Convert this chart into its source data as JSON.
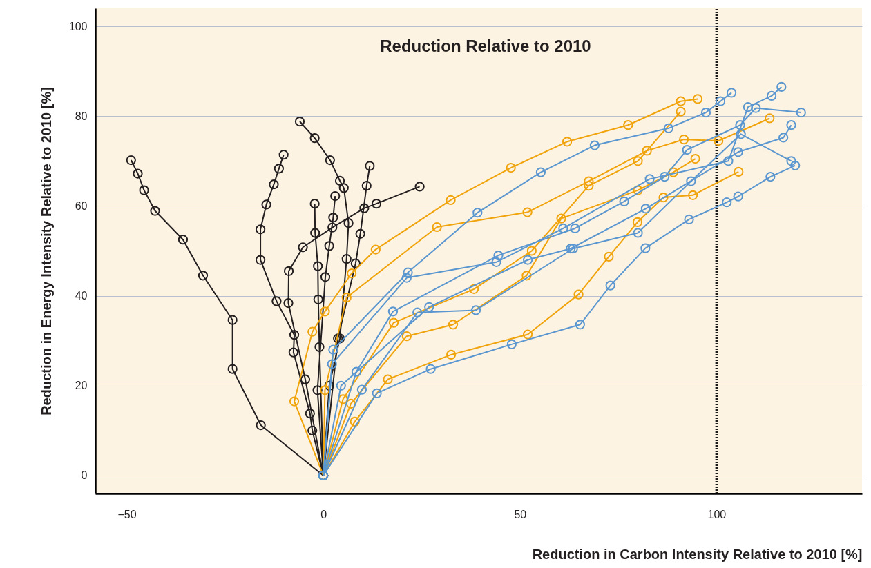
{
  "chart_data": {
    "type": "line",
    "title": "Reduction Relative to 2010",
    "xlabel": "Reduction in Carbon Intensity Relative to 2010 [%]",
    "ylabel": "Reduction in Energy Intensity Relative to 2010 [%]",
    "xlim": [
      -58,
      137
    ],
    "ylim": [
      -4,
      104
    ],
    "xticks": [
      -50,
      0,
      50,
      100
    ],
    "yticks": [
      0,
      20,
      40,
      60,
      80,
      100
    ],
    "grid": "y",
    "marker": "circle",
    "ref_lines": [
      {
        "axis": "x",
        "value": 100,
        "color": "#1a1a1a",
        "line_style": "dotted"
      }
    ],
    "series": [
      {
        "color": "#231f20",
        "x": [
          0,
          -15.9,
          -23.1,
          -23.1,
          -30.6,
          -35.7,
          -42.8,
          -45.6,
          -47.2,
          -48.9
        ],
        "values": [
          0,
          11.2,
          23.7,
          34.6,
          44.5,
          52.5,
          58.9,
          63.5,
          67.2,
          70.2
        ]
      },
      {
        "color": "#231f20",
        "x": [
          0,
          -2.8,
          -3.4,
          -7.6,
          -7.4,
          -11.9,
          -16,
          -16,
          -14.5,
          -12.6,
          -11.3,
          -10.1
        ],
        "values": [
          0,
          10,
          13.8,
          27.4,
          31.3,
          38.8,
          48,
          54.8,
          60.3,
          64.8,
          68.3,
          71.4
        ]
      },
      {
        "color": "#231f20",
        "x": [
          0,
          1.5,
          4.2,
          5.9,
          6.4,
          5.2,
          4.2,
          1.7,
          -2.2,
          -6
        ],
        "values": [
          0,
          20,
          30.5,
          48.2,
          56.2,
          64,
          65.6,
          70.2,
          75.1,
          78.8
        ]
      },
      {
        "color": "#231f20",
        "x": [
          0,
          -4.6,
          -8.9,
          -8.8,
          -5.2,
          2.3,
          10.4,
          13.5,
          24.5
        ],
        "values": [
          0,
          21.4,
          38.4,
          45.5,
          50.8,
          55.2,
          59.5,
          60.5,
          64.3
        ]
      },
      {
        "color": "#231f20",
        "x": [
          0,
          3.7,
          8.2,
          9.4,
          11,
          11.8
        ],
        "values": [
          0,
          30.5,
          47.2,
          53.8,
          64.5,
          68.9
        ]
      },
      {
        "color": "#231f20",
        "x": [
          0,
          -1,
          -1.3,
          -1.4,
          -2.1,
          -2.2
        ],
        "values": [
          0,
          28.6,
          39.2,
          46.6,
          54,
          60.5
        ]
      },
      {
        "color": "#231f20",
        "x": [
          0,
          -1.5,
          0.5,
          1.5,
          2.5,
          3
        ],
        "values": [
          0,
          19,
          44.2,
          51.1,
          57.4,
          62.2
        ]
      },
      {
        "color": "#f0a30a",
        "x": [
          0,
          -7.4,
          -2.8,
          0.4,
          7.2,
          13.3,
          32.4,
          47.7,
          62,
          77.5,
          90.9,
          95.2
        ],
        "values": [
          0,
          16.5,
          32,
          36.5,
          45,
          50.3,
          61.3,
          68.5,
          74.3,
          78,
          83.3,
          83.8
        ]
      },
      {
        "color": "#f0a30a",
        "x": [
          0,
          0.4,
          5.9,
          28.9,
          51.9,
          67.5,
          82.3,
          91.7,
          100.5,
          113.5
        ],
        "values": [
          0,
          19,
          39.6,
          55.3,
          58.6,
          65.5,
          72.3,
          74.8,
          74.5,
          79.5
        ]
      },
      {
        "color": "#f0a30a",
        "x": [
          0,
          5,
          17.9,
          38.3,
          53,
          67.5,
          80,
          90.9
        ],
        "values": [
          0,
          17,
          34,
          41.5,
          50,
          64.5,
          70,
          81
        ]
      },
      {
        "color": "#f0a30a",
        "x": [
          0,
          7,
          21.2,
          33,
          51.7,
          60.5,
          80,
          89,
          94.6
        ],
        "values": [
          0,
          16,
          31,
          33.6,
          44.5,
          57.2,
          63.5,
          67.5,
          70.5
        ]
      },
      {
        "color": "#f0a30a",
        "x": [
          0,
          8,
          16.4,
          32.5,
          52,
          64.9,
          72.6,
          79.9,
          86.5,
          94,
          105.6
        ],
        "values": [
          0,
          12,
          21.4,
          26.9,
          31.4,
          40.3,
          48.7,
          56.4,
          61.9,
          62.4,
          67.6
        ]
      },
      {
        "color": "#5a96cf",
        "x": [
          0,
          2.5,
          21.5,
          39.2,
          55.3,
          69,
          87.8,
          97.3,
          101,
          103.8
        ],
        "values": [
          0,
          28,
          45.2,
          58.5,
          67.5,
          73.5,
          77.3,
          80.8,
          83.3,
          85.2
        ]
      },
      {
        "color": "#5a96cf",
        "x": [
          0,
          2.2,
          21.2,
          44,
          61,
          83,
          103,
          108,
          114,
          116.5
        ],
        "values": [
          0,
          24.8,
          44,
          47.5,
          55,
          66,
          70,
          82,
          84.5,
          86.5
        ]
      },
      {
        "color": "#5a96cf",
        "x": [
          0,
          8.4,
          17.7,
          44.5,
          64,
          76.5,
          86.8,
          92.5,
          106,
          110,
          121.5
        ],
        "values": [
          0,
          23.1,
          36.5,
          49,
          55,
          61,
          66.5,
          72.5,
          78,
          81.8,
          80.8
        ]
      },
      {
        "color": "#5a96cf",
        "x": [
          0,
          4.5,
          26.9,
          52,
          62.9,
          82,
          105.5,
          117,
          119
        ],
        "values": [
          0,
          20,
          37.5,
          48,
          50.5,
          59.4,
          72,
          75.2,
          78
        ]
      },
      {
        "color": "#5a96cf",
        "x": [
          0,
          9.8,
          23.9,
          38.8,
          63.5,
          80,
          93.5,
          106.2,
          119
        ],
        "values": [
          0,
          19.1,
          36.3,
          36.8,
          50.5,
          54,
          65.5,
          76,
          70
        ]
      },
      {
        "color": "#5a96cf",
        "x": [
          0,
          13.6,
          27.3,
          47.9,
          65.3,
          73,
          81.9,
          93,
          102.6,
          105.5,
          113.7,
          120
        ],
        "values": [
          0,
          18.3,
          23.7,
          29.2,
          33.6,
          42.3,
          50.6,
          57,
          60.8,
          62.1,
          66.5,
          69
        ]
      }
    ]
  }
}
